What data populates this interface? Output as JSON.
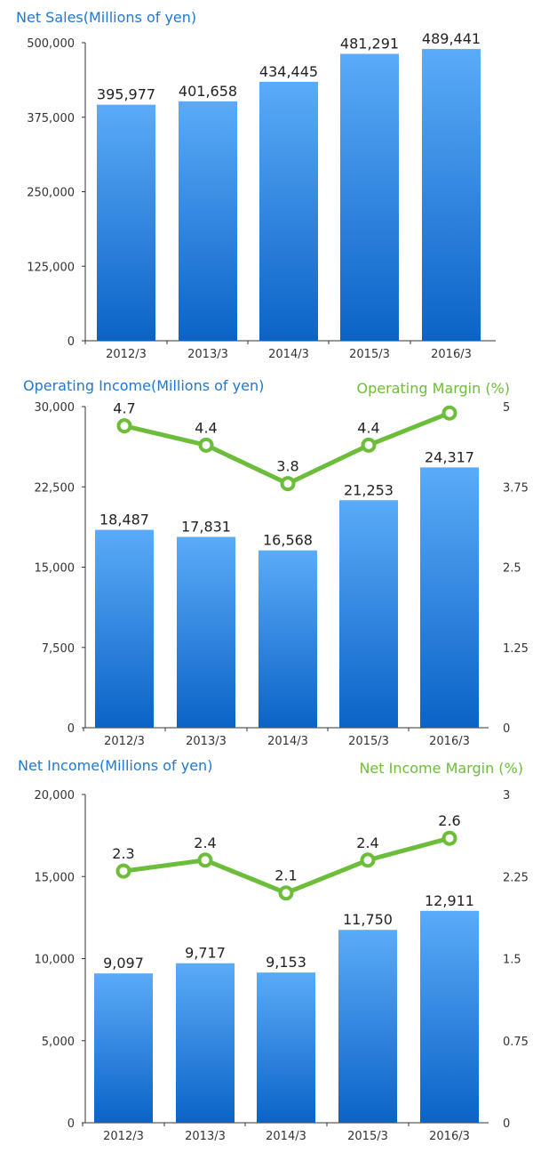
{
  "colors": {
    "bar_top": "#5aabf8",
    "bar_bottom": "#0b63c6",
    "line": "#6cbd3a",
    "axis": "#333333",
    "title_blue": "#1f78d1",
    "title_green": "#6cbd3a"
  },
  "chart_data": [
    {
      "type": "bar",
      "title": "Net Sales(Millions of yen)",
      "categories": [
        "2012/3",
        "2013/3",
        "2014/3",
        "2015/3",
        "2016/3"
      ],
      "values": [
        395977,
        401658,
        434445,
        481291,
        489441
      ],
      "value_labels": [
        "395,977",
        "401,658",
        "434,445",
        "481,291",
        "489,441"
      ],
      "ylim": [
        0,
        500000
      ],
      "yticks": [
        "0",
        "125,000",
        "250,000",
        "375,000",
        "500,000"
      ],
      "grid": false
    },
    {
      "type": "bar+line",
      "title": "Operating Income(Millions of yen)",
      "right_title": "Operating Margin (%)",
      "categories": [
        "2012/3",
        "2013/3",
        "2014/3",
        "2015/3",
        "2016/3"
      ],
      "values": [
        18487,
        17831,
        16568,
        21253,
        24317
      ],
      "value_labels": [
        "18,487",
        "17,831",
        "16,568",
        "21,253",
        "24,317"
      ],
      "line_values": [
        4.7,
        4.4,
        3.8,
        4.4,
        4.9
      ],
      "line_labels": [
        "4.7",
        "4.4",
        "3.8",
        "4.4",
        ""
      ],
      "ylim": [
        0,
        30000
      ],
      "yticks": [
        "0",
        "7,500",
        "15,000",
        "22,500",
        "30,000"
      ],
      "y2lim": [
        0,
        5
      ],
      "y2ticks": [
        "0",
        "1.25",
        "2.5",
        "3.75",
        "5"
      ],
      "grid": false
    },
    {
      "type": "bar+line",
      "title": "Net Income(Millions of yen)",
      "right_title": "Net Income Margin (%)",
      "categories": [
        "2012/3",
        "2013/3",
        "2014/3",
        "2015/3",
        "2016/3"
      ],
      "values": [
        9097,
        9717,
        9153,
        11750,
        12911
      ],
      "value_labels": [
        "9,097",
        "9,717",
        "9,153",
        "11,750",
        "12,911"
      ],
      "line_values": [
        2.3,
        2.4,
        2.1,
        2.4,
        2.6
      ],
      "line_labels": [
        "2.3",
        "2.4",
        "2.1",
        "2.4",
        "2.6"
      ],
      "ylim": [
        0,
        20000
      ],
      "yticks": [
        "0",
        "5,000",
        "10,000",
        "15,000",
        "20,000"
      ],
      "y2lim": [
        0,
        3
      ],
      "y2ticks": [
        "0",
        "0.75",
        "1.5",
        "2.25",
        "3"
      ],
      "grid": false
    }
  ]
}
